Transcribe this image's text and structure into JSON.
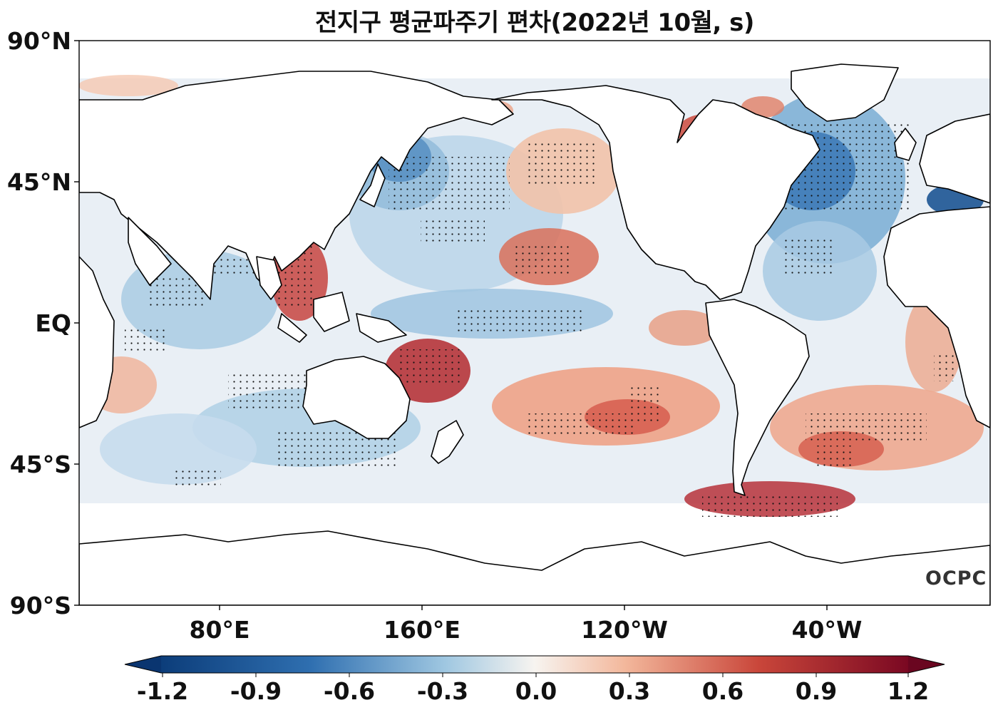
{
  "title": "전지구 평균파주기 편차(2022년 10월, s)",
  "lat_labels": [
    "90°N",
    "45°N",
    "EQ",
    "45°S",
    "90°S"
  ],
  "lon_labels": [
    "80°E",
    "160°E",
    "120°W",
    "40°W"
  ],
  "colorbar": {
    "ticks": [
      "-1.2",
      "-0.9",
      "-0.6",
      "-0.3",
      "0.0",
      "0.3",
      "0.6",
      "0.9",
      "1.2"
    ],
    "min": -1.2,
    "max": 1.2,
    "extend": "both",
    "colormap": "RdBu_r"
  },
  "colors": {
    "deep_blue": "#0c3d7a",
    "blue": "#2f6fb0",
    "light_blue": "#c5dcec",
    "neutral": "#f7f4f0",
    "light_red": "#f3b89c",
    "red": "#c9463a",
    "deep_red": "#7a0822",
    "land": "#ffffff",
    "coast": "#000000"
  },
  "logo": "OCPC"
}
